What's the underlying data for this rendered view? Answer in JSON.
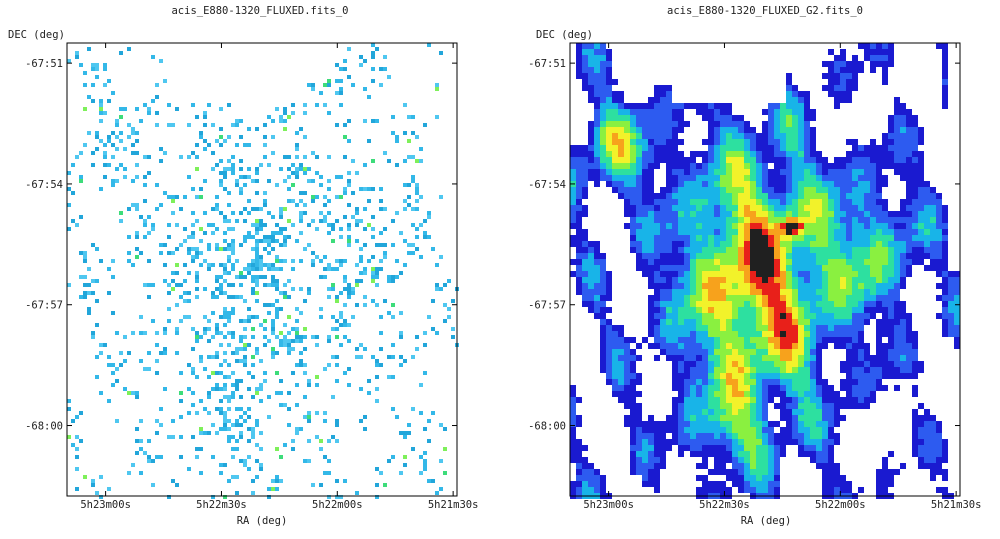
{
  "colors": {
    "frame": "#000000",
    "background": "#ffffff",
    "raw_palette": [
      "#33b8e8",
      "#22a6da",
      "#4fc7f0",
      "#3ddc7a",
      "#7ef05a"
    ],
    "smooth_palette": [
      "#1a1ad0",
      "#2d5bf0",
      "#18b4e8",
      "#2de0a0",
      "#8af040",
      "#f2f22a",
      "#f7a21c",
      "#e8201a",
      "#202020"
    ]
  },
  "chart_data": [
    {
      "type": "heatmap",
      "variant": "raw",
      "title": "acis_E880-1320_FLUXED.fits_0",
      "xlabel": "RA (deg)",
      "ylabel": "DEC (deg)",
      "x_ticks": [
        "5h23m00s",
        "5h22m30s",
        "5h22m00s",
        "5h21m30s"
      ],
      "y_ticks": [
        "-67:51",
        "-67:54",
        "-67:57",
        "-68:00"
      ],
      "xlim": [
        "5h23m10s",
        "5h21m29s"
      ],
      "ylim": [
        "-68:01:45",
        "-67:50:30"
      ],
      "grid": false
    },
    {
      "type": "heatmap",
      "variant": "smoothed",
      "title": "acis_E880-1320_FLUXED_G2.fits_0",
      "xlabel": "RA (deg)",
      "ylabel": "DEC (deg)",
      "x_ticks": [
        "5h23m00s",
        "5h22m30s",
        "5h22m00s",
        "5h21m30s"
      ],
      "y_ticks": [
        "-67:51",
        "-67:54",
        "-67:57",
        "-68:00"
      ],
      "xlim": [
        "5h23m10s",
        "5h21m29s"
      ],
      "ylim": [
        "-68:01:45",
        "-67:50:30"
      ],
      "grid": false
    }
  ]
}
